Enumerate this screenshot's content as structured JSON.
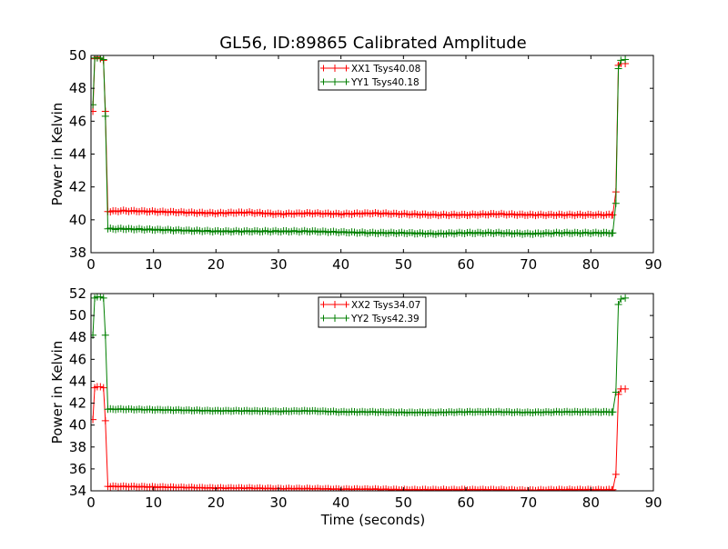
{
  "figure": {
    "title": "GL56, ID:89865 Calibrated Amplitude",
    "xlabel": "Time (seconds)"
  },
  "chart_data": [
    {
      "type": "line",
      "ylabel": "Power in Kelvin",
      "xlim": [
        0,
        90
      ],
      "ylim": [
        38,
        50
      ],
      "xticks": [
        0,
        10,
        20,
        30,
        40,
        50,
        60,
        70,
        80,
        90
      ],
      "yticks": [
        38,
        40,
        42,
        44,
        46,
        48,
        50
      ],
      "grid": false,
      "legend_position": "top-center",
      "marker": "+",
      "series": [
        {
          "name": "XX1 Tsys40.08",
          "color": "#ff0000",
          "points": [
            [
              0.3,
              46.6
            ],
            [
              0.6,
              49.8
            ],
            [
              1.0,
              49.9
            ],
            [
              1.5,
              49.8
            ],
            [
              2.0,
              49.7
            ],
            [
              2.3,
              46.6
            ],
            [
              2.7,
              40.5
            ],
            [
              5,
              40.55
            ],
            [
              10,
              40.5
            ],
            [
              15,
              40.45
            ],
            [
              20,
              40.4
            ],
            [
              25,
              40.45
            ],
            [
              30,
              40.35
            ],
            [
              35,
              40.4
            ],
            [
              40,
              40.35
            ],
            [
              45,
              40.4
            ],
            [
              50,
              40.35
            ],
            [
              55,
              40.3
            ],
            [
              60,
              40.3
            ],
            [
              65,
              40.35
            ],
            [
              70,
              40.3
            ],
            [
              75,
              40.3
            ],
            [
              80,
              40.3
            ],
            [
              83.5,
              40.3
            ],
            [
              84.0,
              41.7
            ],
            [
              84.4,
              49.4
            ],
            [
              84.8,
              49.5
            ],
            [
              85.5,
              49.5
            ]
          ]
        },
        {
          "name": "YY1 Tsys40.18",
          "color": "#007f00",
          "points": [
            [
              0.3,
              47.0
            ],
            [
              0.6,
              49.85
            ],
            [
              1.0,
              49.85
            ],
            [
              1.5,
              49.85
            ],
            [
              2.0,
              49.75
            ],
            [
              2.3,
              46.3
            ],
            [
              2.7,
              39.45
            ],
            [
              5,
              39.45
            ],
            [
              10,
              39.4
            ],
            [
              15,
              39.35
            ],
            [
              20,
              39.3
            ],
            [
              25,
              39.3
            ],
            [
              30,
              39.3
            ],
            [
              35,
              39.3
            ],
            [
              40,
              39.25
            ],
            [
              45,
              39.2
            ],
            [
              50,
              39.2
            ],
            [
              55,
              39.15
            ],
            [
              60,
              39.2
            ],
            [
              65,
              39.2
            ],
            [
              70,
              39.15
            ],
            [
              75,
              39.2
            ],
            [
              80,
              39.2
            ],
            [
              83.5,
              39.2
            ],
            [
              84.0,
              41.0
            ],
            [
              84.4,
              49.2
            ],
            [
              84.8,
              49.7
            ],
            [
              85.5,
              49.75
            ]
          ]
        }
      ]
    },
    {
      "type": "line",
      "ylabel": "Power in Kelvin",
      "xlim": [
        0,
        90
      ],
      "ylim": [
        34,
        52
      ],
      "xticks": [
        0,
        10,
        20,
        30,
        40,
        50,
        60,
        70,
        80,
        90
      ],
      "yticks": [
        34,
        36,
        38,
        40,
        42,
        44,
        46,
        48,
        50,
        52
      ],
      "grid": false,
      "legend_position": "top-center",
      "marker": "+",
      "series": [
        {
          "name": "XX2 Tsys34.07",
          "color": "#ff0000",
          "points": [
            [
              0.3,
              40.5
            ],
            [
              0.6,
              43.4
            ],
            [
              1.0,
              43.5
            ],
            [
              1.5,
              43.5
            ],
            [
              2.0,
              43.4
            ],
            [
              2.3,
              40.4
            ],
            [
              2.7,
              34.4
            ],
            [
              5,
              34.4
            ],
            [
              10,
              34.35
            ],
            [
              15,
              34.3
            ],
            [
              20,
              34.25
            ],
            [
              25,
              34.25
            ],
            [
              30,
              34.2
            ],
            [
              35,
              34.2
            ],
            [
              40,
              34.15
            ],
            [
              45,
              34.15
            ],
            [
              50,
              34.1
            ],
            [
              55,
              34.1
            ],
            [
              60,
              34.1
            ],
            [
              65,
              34.1
            ],
            [
              70,
              34.05
            ],
            [
              75,
              34.1
            ],
            [
              80,
              34.1
            ],
            [
              83.5,
              34.1
            ],
            [
              84.0,
              35.5
            ],
            [
              84.4,
              42.8
            ],
            [
              84.8,
              43.3
            ],
            [
              85.5,
              43.3
            ]
          ]
        },
        {
          "name": "YY2 Tsys42.39",
          "color": "#007f00",
          "points": [
            [
              0.3,
              48.2
            ],
            [
              0.6,
              51.6
            ],
            [
              1.0,
              51.7
            ],
            [
              1.5,
              51.7
            ],
            [
              2.0,
              51.6
            ],
            [
              2.3,
              48.2
            ],
            [
              2.7,
              41.45
            ],
            [
              5,
              41.45
            ],
            [
              10,
              41.4
            ],
            [
              15,
              41.35
            ],
            [
              20,
              41.3
            ],
            [
              25,
              41.3
            ],
            [
              30,
              41.25
            ],
            [
              35,
              41.3
            ],
            [
              40,
              41.2
            ],
            [
              45,
              41.2
            ],
            [
              50,
              41.15
            ],
            [
              55,
              41.15
            ],
            [
              60,
              41.2
            ],
            [
              65,
              41.2
            ],
            [
              70,
              41.15
            ],
            [
              75,
              41.2
            ],
            [
              80,
              41.2
            ],
            [
              83.5,
              41.2
            ],
            [
              84.0,
              43.0
            ],
            [
              84.4,
              51.0
            ],
            [
              84.8,
              51.5
            ],
            [
              85.5,
              51.6
            ]
          ]
        }
      ]
    }
  ]
}
